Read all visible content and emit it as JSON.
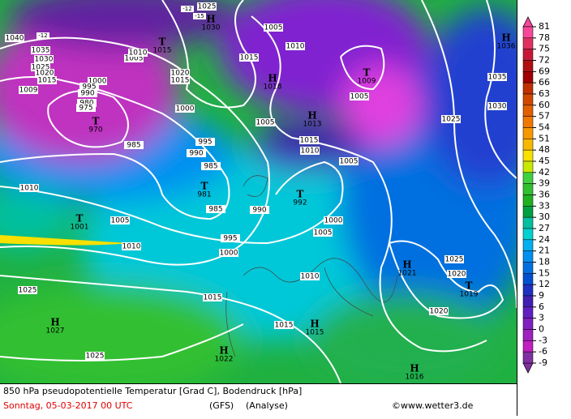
{
  "map": {
    "title": "850 hPa pseudopotentielle Temperatur [Grad C], Bodendruck [hPa]",
    "date": "Sonntag, 05-03-2017  00 UTC",
    "model": "(GFS)",
    "run": "(Analyse)",
    "credit": "©www.wetter3.de",
    "colorbar": {
      "ticks": [
        81,
        78,
        75,
        72,
        69,
        66,
        63,
        60,
        57,
        54,
        51,
        48,
        45,
        42,
        39,
        36,
        33,
        30,
        27,
        24,
        21,
        18,
        15,
        12,
        9,
        6,
        3,
        0,
        -3,
        -6,
        -9
      ],
      "colors": [
        "#f7489a",
        "#e03060",
        "#c81838",
        "#b01010",
        "#a00000",
        "#c03000",
        "#d04800",
        "#e06000",
        "#f07800",
        "#f89800",
        "#f8b800",
        "#f8e000",
        "#c8e800",
        "#40d040",
        "#30c030",
        "#20b020",
        "#00a040",
        "#00c0a0",
        "#00d0d0",
        "#00b0f0",
        "#0090f0",
        "#0070e0",
        "#0050d0",
        "#2030c0",
        "#4020b0",
        "#6020c0",
        "#8020c0",
        "#a020c0",
        "#c020c0",
        "#8030a0"
      ]
    },
    "pressure_centers": [
      {
        "symbol": "H",
        "value": 1030
      },
      {
        "symbol": "T",
        "value": 1015
      },
      {
        "symbol": "H",
        "value": 1018
      },
      {
        "symbol": "T",
        "value": 1009
      },
      {
        "symbol": "H",
        "value": 1013
      },
      {
        "symbol": "T",
        "value": 970
      },
      {
        "symbol": "H",
        "value": 1036
      },
      {
        "symbol": "T",
        "value": 981
      },
      {
        "symbol": "T",
        "value": 992
      },
      {
        "symbol": "T",
        "value": 1001
      },
      {
        "symbol": "H",
        "value": 1021
      },
      {
        "symbol": "T",
        "value": 1019
      },
      {
        "symbol": "H",
        "value": 1027
      },
      {
        "symbol": "H",
        "value": 1015
      },
      {
        "symbol": "H",
        "value": 1022
      },
      {
        "symbol": "H",
        "value": 1016
      }
    ],
    "isobar_labels": [
      1040,
      1035,
      1030,
      1025,
      1020,
      1015,
      1009,
      1000,
      995,
      990,
      980,
      975,
      1005,
      1010,
      1020,
      1015,
      1025,
      1005,
      1010,
      1015,
      1005,
      1035,
      1030,
      1025,
      1000,
      985,
      995,
      990,
      985,
      1005,
      1010,
      1015,
      1005,
      1010,
      1005,
      1010,
      985,
      990,
      1000,
      1005,
      995,
      1000,
      1010,
      1025,
      1020,
      1025,
      1015,
      1015,
      1020,
      1025
    ],
    "temperature_labels": [
      -12,
      -15,
      -12
    ]
  }
}
